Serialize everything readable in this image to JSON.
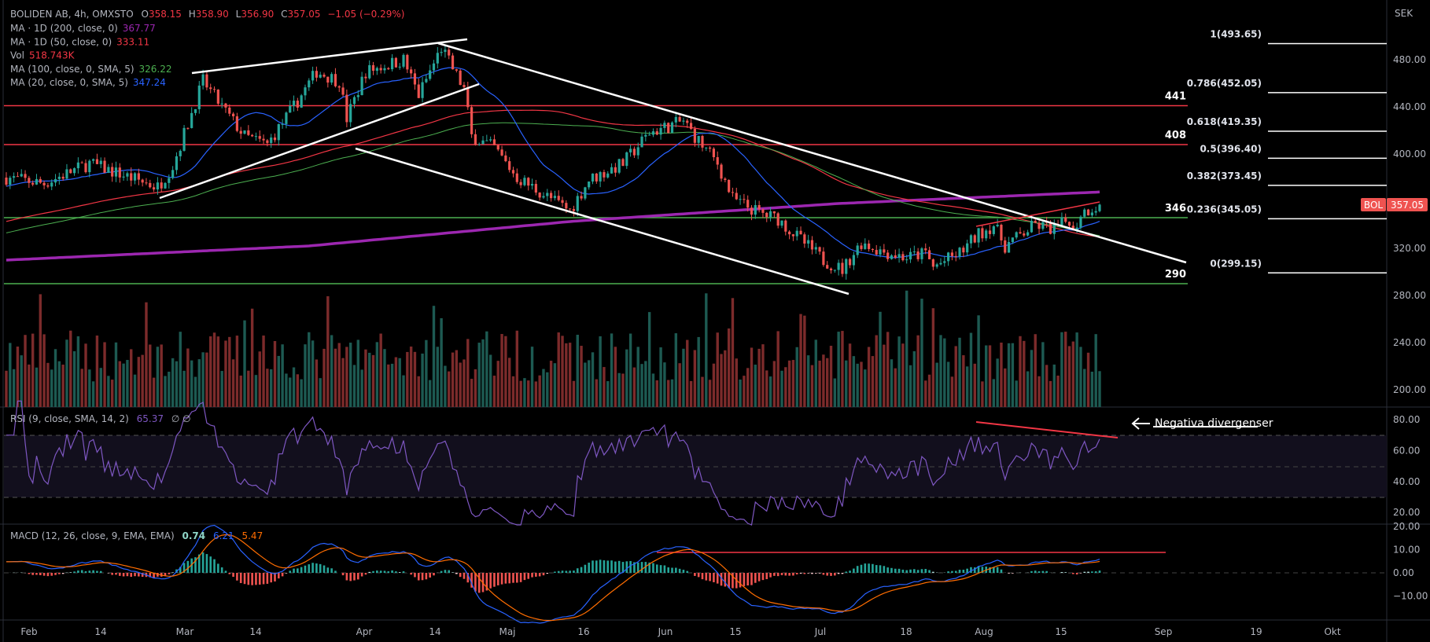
{
  "header": {
    "symbol": "BOLIDEN AB, 4h, OMXSTO",
    "o_label": "O",
    "o": "358.15",
    "h_label": "H",
    "h": "358.90",
    "l_label": "L",
    "l": "356.90",
    "c_label": "C",
    "c": "357.05",
    "change": "−1.05 (−0.29%)"
  },
  "legend": [
    {
      "label": "MA · 1D (200, close, 0)",
      "value": "367.77",
      "color": "#9c27b0"
    },
    {
      "label": "MA · 1D (50, close, 0)",
      "value": "333.11",
      "color": "#f23645"
    },
    {
      "label": "Vol",
      "value": "518.743K",
      "color": "#f23645"
    },
    {
      "label": "MA (100, close, 0, SMA, 5)",
      "value": "326.22",
      "color": "#4caf50"
    },
    {
      "label": "MA (20, close, 0, SMA, 5)",
      "value": "347.24",
      "color": "#2962ff"
    }
  ],
  "price_axis": {
    "currency": "SEK",
    "ticks": [
      "480.00",
      "440.00",
      "400.00",
      "320.00",
      "280.00",
      "240.00",
      "200.00"
    ],
    "tick_values": [
      480,
      440,
      400,
      320,
      280,
      240,
      200
    ],
    "last_label": "BOL",
    "last_price": "357.05",
    "last_value": 357.05
  },
  "fib_levels": [
    {
      "label": "1(493.65)",
      "value": 493.65
    },
    {
      "label": "0.786(452.05)",
      "value": 452.05
    },
    {
      "label": "0.618(419.35)",
      "value": 419.35
    },
    {
      "label": "0.5(396.40)",
      "value": 396.4
    },
    {
      "label": "0.382(373.45)",
      "value": 373.45
    },
    {
      "label": "0.236(345.05)",
      "value": 345.05
    },
    {
      "label": "0(299.15)",
      "value": 299.15
    }
  ],
  "levels": [
    {
      "label": "441",
      "value": 441,
      "color": "#f23645"
    },
    {
      "label": "408",
      "value": 408,
      "color": "#f23645"
    },
    {
      "label": "346",
      "value": 346,
      "color": "#4caf50"
    },
    {
      "label": "290",
      "value": 290,
      "color": "#4caf50"
    }
  ],
  "rsi": {
    "legend": "RSI (9, close, SMA, 14, 2)",
    "value": "65.37",
    "extra": "∅  ∅",
    "ticks": [
      "80.00",
      "60.00",
      "40.00",
      "20.00"
    ],
    "tick_values": [
      80,
      60,
      40,
      20
    ],
    "annotation": "Negativa divergenser"
  },
  "macd": {
    "legend": "MACD (12, 26, close, 9, EMA, EMA)",
    "hist": "0.74",
    "macd": "6.21",
    "signal": "5.47",
    "ticks": [
      "20.00",
      "10.00",
      "0.00",
      "−10.00"
    ],
    "tick_values": [
      20,
      10,
      0,
      -10
    ]
  },
  "time_axis": [
    "Feb",
    "14",
    "Mar",
    "14",
    "Apr",
    "14",
    "Maj",
    "16",
    "Jun",
    "15",
    "Jul",
    "18",
    "Aug",
    "15",
    "Sep",
    "19",
    "Okt"
  ],
  "colors": {
    "up": "#26a69a",
    "down": "#ef5350",
    "vol_up": "#1d5a52",
    "vol_down": "#7c2b2b",
    "rsi": "#7e57c2",
    "macd": "#2962ff",
    "signal": "#ff6d00"
  },
  "chart_data": {
    "type": "candlestick",
    "bars": 290,
    "close_anchors": [
      [
        0,
        380
      ],
      [
        10,
        375
      ],
      [
        22,
        392
      ],
      [
        40,
        372
      ],
      [
        44,
        390
      ],
      [
        52,
        462
      ],
      [
        57,
        440
      ],
      [
        63,
        415
      ],
      [
        69,
        408
      ],
      [
        76,
        440
      ],
      [
        82,
        470
      ],
      [
        88,
        462
      ],
      [
        90,
        430
      ],
      [
        95,
        470
      ],
      [
        105,
        480
      ],
      [
        109,
        450
      ],
      [
        115,
        490
      ],
      [
        121,
        455
      ],
      [
        123,
        415
      ],
      [
        129,
        405
      ],
      [
        135,
        380
      ],
      [
        144,
        362
      ],
      [
        149,
        352
      ],
      [
        154,
        378
      ],
      [
        163,
        392
      ],
      [
        170,
        418
      ],
      [
        179,
        428
      ],
      [
        182,
        415
      ],
      [
        188,
        392
      ],
      [
        192,
        362
      ],
      [
        199,
        350
      ],
      [
        204,
        345
      ],
      [
        209,
        330
      ],
      [
        216,
        310
      ],
      [
        221,
        302
      ],
      [
        226,
        325
      ],
      [
        231,
        318
      ],
      [
        238,
        312
      ],
      [
        243,
        316
      ],
      [
        245,
        304
      ],
      [
        252,
        316
      ],
      [
        257,
        332
      ],
      [
        261,
        340
      ],
      [
        264,
        322
      ],
      [
        272,
        340
      ],
      [
        277,
        336
      ],
      [
        281,
        345
      ],
      [
        282,
        333
      ],
      [
        284,
        350
      ],
      [
        289,
        357.05
      ]
    ],
    "ma200d_anchors": [
      [
        0,
        310
      ],
      [
        80,
        322
      ],
      [
        150,
        343
      ],
      [
        220,
        358
      ],
      [
        289,
        367.77
      ]
    ]
  }
}
